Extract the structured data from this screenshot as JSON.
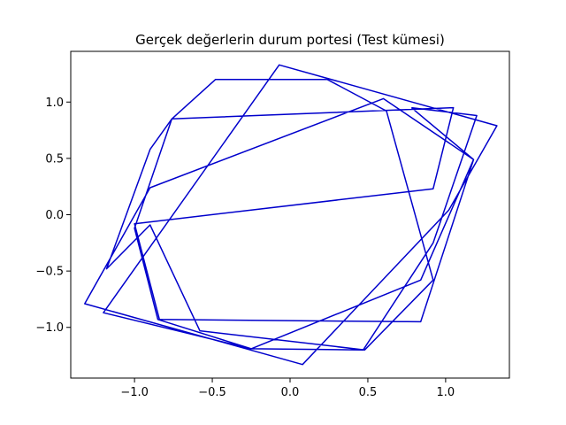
{
  "chart_data": {
    "type": "line",
    "title": "Gerçek değerlerin durum portesi (Test kümesi)",
    "xlabel": "",
    "ylabel": "",
    "xlim": [
      -1.41,
      1.41
    ],
    "ylim": [
      -1.45,
      1.45
    ],
    "xticks": [
      -1.0,
      -0.5,
      0.0,
      0.5,
      1.0
    ],
    "xtick_labels": [
      "−1.0",
      "−0.5",
      "0.0",
      "0.5",
      "1.0"
    ],
    "yticks": [
      -1.0,
      -0.5,
      0.0,
      0.5,
      1.0
    ],
    "ytick_labels": [
      "−1.0",
      "−0.5",
      "0.0",
      "0.5",
      "1.0"
    ],
    "grid": false,
    "line_color": "#0000cc",
    "series": [
      {
        "x": [
          0.78,
          1.2,
          0.92,
          0.47,
          -0.25,
          -0.85,
          -1.0,
          -0.76,
          -0.48,
          0.24,
          0.62,
          0.92,
          0.48,
          -0.58,
          -0.9,
          -1.18,
          -0.9,
          -0.76,
          1.05,
          0.92,
          -1.0,
          -0.84,
          0.84,
          1.18,
          0.6,
          -0.9,
          -1.32,
          0.08,
          1.02,
          1.33,
          -0.07,
          -1.2,
          -0.25,
          0.84,
          1.18,
          0.78
        ],
        "y": [
          0.95,
          0.88,
          -0.25,
          -1.2,
          -1.19,
          -0.93,
          -0.12,
          0.85,
          1.2,
          1.2,
          0.92,
          -0.58,
          -1.2,
          -1.03,
          -0.09,
          -0.48,
          0.58,
          0.85,
          0.95,
          0.23,
          -0.08,
          -0.93,
          -0.95,
          0.49,
          1.03,
          0.24,
          -0.79,
          -1.33,
          0.04,
          0.79,
          1.33,
          -0.87,
          -1.19,
          -0.58,
          0.49,
          0.95
        ]
      }
    ]
  }
}
